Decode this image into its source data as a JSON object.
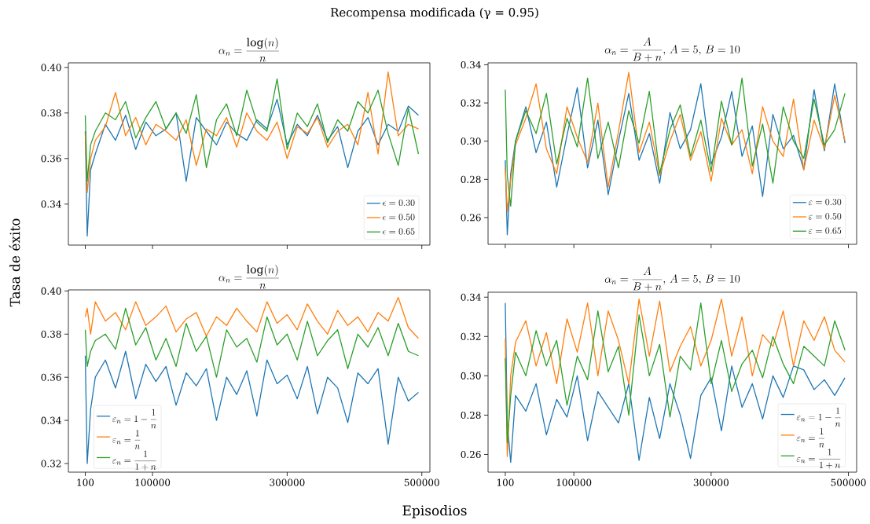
{
  "chart_data": [
    {
      "type": "line",
      "title": "\\alpha_n = \\frac{\\log(n)}{n}",
      "annotations": [
        "Recompensa modificada (γ = 0.95)"
      ],
      "x": [
        100,
        3000,
        8000,
        15000,
        30000,
        45000,
        60000,
        75000,
        90000,
        105000,
        120000,
        135000,
        150000,
        165000,
        180000,
        195000,
        210000,
        225000,
        240000,
        255000,
        270000,
        285000,
        300000,
        315000,
        330000,
        345000,
        360000,
        375000,
        390000,
        405000,
        420000,
        435000,
        450000,
        465000,
        480000,
        495000
      ],
      "xlim": [
        -25000,
        512000
      ],
      "ylim": [
        0.322,
        0.402
      ],
      "xticks": [
        100,
        100000,
        300000,
        500000
      ],
      "yticks": [
        {
          "value": 0.34,
          "label": "0.34"
        },
        {
          "value": 0.36,
          "label": "0.36"
        },
        {
          "value": 0.38,
          "label": "0.38"
        },
        {
          "value": 0.4,
          "label": "0.40"
        }
      ],
      "tick_labels": "y",
      "legend": "bottom right",
      "series": [
        {
          "name": "\\epsilon = 0.30",
          "color": "#1f77b4",
          "values": [
            0.372,
            0.326,
            0.355,
            0.362,
            0.375,
            0.368,
            0.379,
            0.364,
            0.376,
            0.37,
            0.373,
            0.38,
            0.35,
            0.378,
            0.372,
            0.366,
            0.376,
            0.371,
            0.368,
            0.377,
            0.373,
            0.386,
            0.366,
            0.375,
            0.37,
            0.379,
            0.368,
            0.374,
            0.356,
            0.372,
            0.378,
            0.366,
            0.375,
            0.372,
            0.383,
            0.379
          ]
        },
        {
          "name": "\\epsilon = 0.50",
          "color": "#ff7f0e",
          "values": [
            0.371,
            0.345,
            0.36,
            0.368,
            0.374,
            0.389,
            0.37,
            0.378,
            0.366,
            0.375,
            0.372,
            0.368,
            0.377,
            0.357,
            0.373,
            0.37,
            0.378,
            0.365,
            0.38,
            0.372,
            0.368,
            0.376,
            0.36,
            0.374,
            0.371,
            0.378,
            0.365,
            0.372,
            0.375,
            0.366,
            0.389,
            0.362,
            0.398,
            0.37,
            0.375,
            0.373
          ]
        },
        {
          "name": "\\epsilon = 0.65",
          "color": "#2ca02c",
          "values": [
            0.379,
            0.35,
            0.366,
            0.372,
            0.38,
            0.377,
            0.385,
            0.369,
            0.378,
            0.385,
            0.373,
            0.38,
            0.371,
            0.388,
            0.356,
            0.377,
            0.384,
            0.37,
            0.39,
            0.376,
            0.372,
            0.395,
            0.364,
            0.38,
            0.374,
            0.384,
            0.367,
            0.377,
            0.372,
            0.385,
            0.38,
            0.39,
            0.371,
            0.357,
            0.382,
            0.362
          ]
        }
      ]
    },
    {
      "type": "line",
      "title": "\\alpha_n = \\frac{A}{B + n},\\, A = 5,\\, B = 10",
      "x": [
        100,
        3000,
        8000,
        15000,
        30000,
        45000,
        60000,
        75000,
        90000,
        105000,
        120000,
        135000,
        150000,
        165000,
        180000,
        195000,
        210000,
        225000,
        240000,
        255000,
        270000,
        285000,
        300000,
        315000,
        330000,
        345000,
        360000,
        375000,
        390000,
        405000,
        420000,
        435000,
        450000,
        465000,
        480000,
        495000
      ],
      "xlim": [
        -25000,
        512000
      ],
      "ylim": [
        0.246,
        0.341
      ],
      "xticks": [
        100,
        100000,
        300000,
        500000
      ],
      "yticks": [
        {
          "value": 0.26,
          "label": "0.26"
        },
        {
          "value": 0.28,
          "label": "0.28"
        },
        {
          "value": 0.3,
          "label": "0.30"
        },
        {
          "value": 0.32,
          "label": "0.32"
        },
        {
          "value": 0.34,
          "label": "0.34"
        }
      ],
      "tick_labels": "y",
      "legend": "bottom right",
      "series": [
        {
          "name": "\\varepsilon = 0.30",
          "color": "#1f77b4",
          "values": [
            0.29,
            0.251,
            0.283,
            0.3,
            0.318,
            0.294,
            0.31,
            0.276,
            0.303,
            0.328,
            0.286,
            0.311,
            0.272,
            0.3,
            0.325,
            0.29,
            0.304,
            0.278,
            0.315,
            0.296,
            0.306,
            0.33,
            0.288,
            0.302,
            0.326,
            0.292,
            0.308,
            0.271,
            0.314,
            0.296,
            0.303,
            0.285,
            0.327,
            0.295,
            0.33,
            0.299
          ]
        },
        {
          "name": "\\varepsilon = 0.50",
          "color": "#ff7f0e",
          "values": [
            0.286,
            0.263,
            0.28,
            0.298,
            0.312,
            0.33,
            0.296,
            0.283,
            0.318,
            0.302,
            0.289,
            0.32,
            0.276,
            0.305,
            0.336,
            0.294,
            0.31,
            0.282,
            0.3,
            0.314,
            0.29,
            0.305,
            0.279,
            0.312,
            0.298,
            0.306,
            0.283,
            0.318,
            0.3,
            0.292,
            0.322,
            0.285,
            0.311,
            0.296,
            0.324,
            0.3
          ]
        },
        {
          "name": "\\varepsilon = 0.65",
          "color": "#2ca02c",
          "values": [
            0.327,
            0.282,
            0.266,
            0.3,
            0.316,
            0.304,
            0.325,
            0.288,
            0.312,
            0.297,
            0.333,
            0.291,
            0.31,
            0.286,
            0.316,
            0.299,
            0.326,
            0.283,
            0.306,
            0.319,
            0.292,
            0.311,
            0.284,
            0.321,
            0.298,
            0.333,
            0.287,
            0.309,
            0.278,
            0.318,
            0.3,
            0.291,
            0.322,
            0.298,
            0.306,
            0.325
          ]
        }
      ]
    },
    {
      "type": "line",
      "title": "\\alpha_n = \\frac{\\log(n)}{n}",
      "xlabel": "Episodios",
      "ylabel": "Tasa de éxito",
      "x": [
        100,
        3000,
        8000,
        15000,
        30000,
        45000,
        60000,
        75000,
        90000,
        105000,
        120000,
        135000,
        150000,
        165000,
        180000,
        195000,
        210000,
        225000,
        240000,
        255000,
        270000,
        285000,
        300000,
        315000,
        330000,
        345000,
        360000,
        375000,
        390000,
        405000,
        420000,
        435000,
        450000,
        465000,
        480000,
        495000
      ],
      "xlim": [
        -25000,
        512000
      ],
      "ylim": [
        0.316,
        0.4005
      ],
      "xticks": [
        100,
        100000,
        300000,
        500000
      ],
      "yticks": [
        {
          "value": 0.32,
          "label": "0.32"
        },
        {
          "value": 0.34,
          "label": "0.34"
        },
        {
          "value": 0.36,
          "label": "0.36"
        },
        {
          "value": 0.38,
          "label": "0.38"
        },
        {
          "value": 0.4,
          "label": "0.40"
        }
      ],
      "legend": "bottom left",
      "series": [
        {
          "name": "\\varepsilon_n = 1 - \\frac{1}{n}",
          "color": "#1f77b4",
          "values": [
            0.37,
            0.32,
            0.345,
            0.36,
            0.368,
            0.355,
            0.372,
            0.35,
            0.366,
            0.358,
            0.365,
            0.347,
            0.362,
            0.356,
            0.364,
            0.34,
            0.36,
            0.352,
            0.363,
            0.342,
            0.368,
            0.357,
            0.361,
            0.35,
            0.365,
            0.343,
            0.36,
            0.355,
            0.339,
            0.362,
            0.357,
            0.364,
            0.329,
            0.36,
            0.349,
            0.353
          ]
        },
        {
          "name": "\\varepsilon_n = \\frac{1}{n}",
          "color": "#ff7f0e",
          "values": [
            0.388,
            0.392,
            0.38,
            0.395,
            0.386,
            0.39,
            0.382,
            0.395,
            0.384,
            0.388,
            0.393,
            0.381,
            0.387,
            0.39,
            0.379,
            0.388,
            0.384,
            0.392,
            0.386,
            0.381,
            0.395,
            0.385,
            0.389,
            0.382,
            0.394,
            0.386,
            0.38,
            0.391,
            0.384,
            0.388,
            0.381,
            0.39,
            0.386,
            0.397,
            0.383,
            0.378
          ]
        },
        {
          "name": "\\varepsilon_n = \\frac{1}{1 + n}",
          "color": "#2ca02c",
          "values": [
            0.382,
            0.365,
            0.372,
            0.377,
            0.38,
            0.373,
            0.392,
            0.375,
            0.383,
            0.368,
            0.378,
            0.365,
            0.385,
            0.372,
            0.379,
            0.36,
            0.382,
            0.374,
            0.378,
            0.367,
            0.388,
            0.375,
            0.38,
            0.368,
            0.386,
            0.37,
            0.377,
            0.382,
            0.364,
            0.38,
            0.374,
            0.383,
            0.37,
            0.385,
            0.372,
            0.37
          ]
        }
      ]
    },
    {
      "type": "line",
      "title": "\\alpha_n = \\frac{A}{B + n},\\, A = 5,\\, B = 10",
      "x": [
        100,
        3000,
        8000,
        15000,
        30000,
        45000,
        60000,
        75000,
        90000,
        105000,
        120000,
        135000,
        150000,
        165000,
        180000,
        195000,
        210000,
        225000,
        240000,
        255000,
        270000,
        285000,
        300000,
        315000,
        330000,
        345000,
        360000,
        375000,
        390000,
        405000,
        420000,
        435000,
        450000,
        465000,
        480000,
        495000
      ],
      "xlim": [
        -25000,
        512000
      ],
      "ylim": [
        0.251,
        0.3425
      ],
      "xticks": [
        100,
        100000,
        300000,
        500000
      ],
      "yticks": [
        {
          "value": 0.26,
          "label": "0.26"
        },
        {
          "value": 0.28,
          "label": "0.28"
        },
        {
          "value": 0.3,
          "label": "0.30"
        },
        {
          "value": 0.32,
          "label": "0.32"
        },
        {
          "value": 0.34,
          "label": "0.34"
        }
      ],
      "legend": "bottom right",
      "series": [
        {
          "name": "\\varepsilon_n = 1 - \\frac{1}{n}",
          "color": "#1f77b4",
          "values": [
            0.337,
            0.276,
            0.256,
            0.29,
            0.282,
            0.296,
            0.27,
            0.288,
            0.279,
            0.3,
            0.267,
            0.292,
            0.284,
            0.276,
            0.296,
            0.257,
            0.289,
            0.268,
            0.296,
            0.28,
            0.258,
            0.29,
            0.299,
            0.272,
            0.305,
            0.284,
            0.296,
            0.278,
            0.3,
            0.289,
            0.305,
            0.303,
            0.293,
            0.298,
            0.29,
            0.299
          ]
        },
        {
          "name": "\\varepsilon_n = \\frac{1}{n}",
          "color": "#ff7f0e",
          "values": [
            0.319,
            0.259,
            0.3,
            0.317,
            0.328,
            0.305,
            0.322,
            0.296,
            0.329,
            0.312,
            0.337,
            0.3,
            0.333,
            0.318,
            0.296,
            0.339,
            0.31,
            0.338,
            0.302,
            0.315,
            0.325,
            0.305,
            0.318,
            0.339,
            0.31,
            0.33,
            0.3,
            0.321,
            0.315,
            0.333,
            0.305,
            0.328,
            0.318,
            0.33,
            0.313,
            0.307
          ]
        },
        {
          "name": "\\varepsilon_n = \\frac{1}{1 + n}",
          "color": "#2ca02c",
          "values": [
            0.309,
            0.266,
            0.29,
            0.312,
            0.3,
            0.323,
            0.305,
            0.318,
            0.285,
            0.31,
            0.298,
            0.333,
            0.302,
            0.315,
            0.28,
            0.331,
            0.3,
            0.316,
            0.279,
            0.31,
            0.303,
            0.337,
            0.296,
            0.318,
            0.292,
            0.306,
            0.313,
            0.299,
            0.32,
            0.306,
            0.296,
            0.315,
            0.31,
            0.305,
            0.328,
            0.313
          ]
        }
      ]
    }
  ]
}
